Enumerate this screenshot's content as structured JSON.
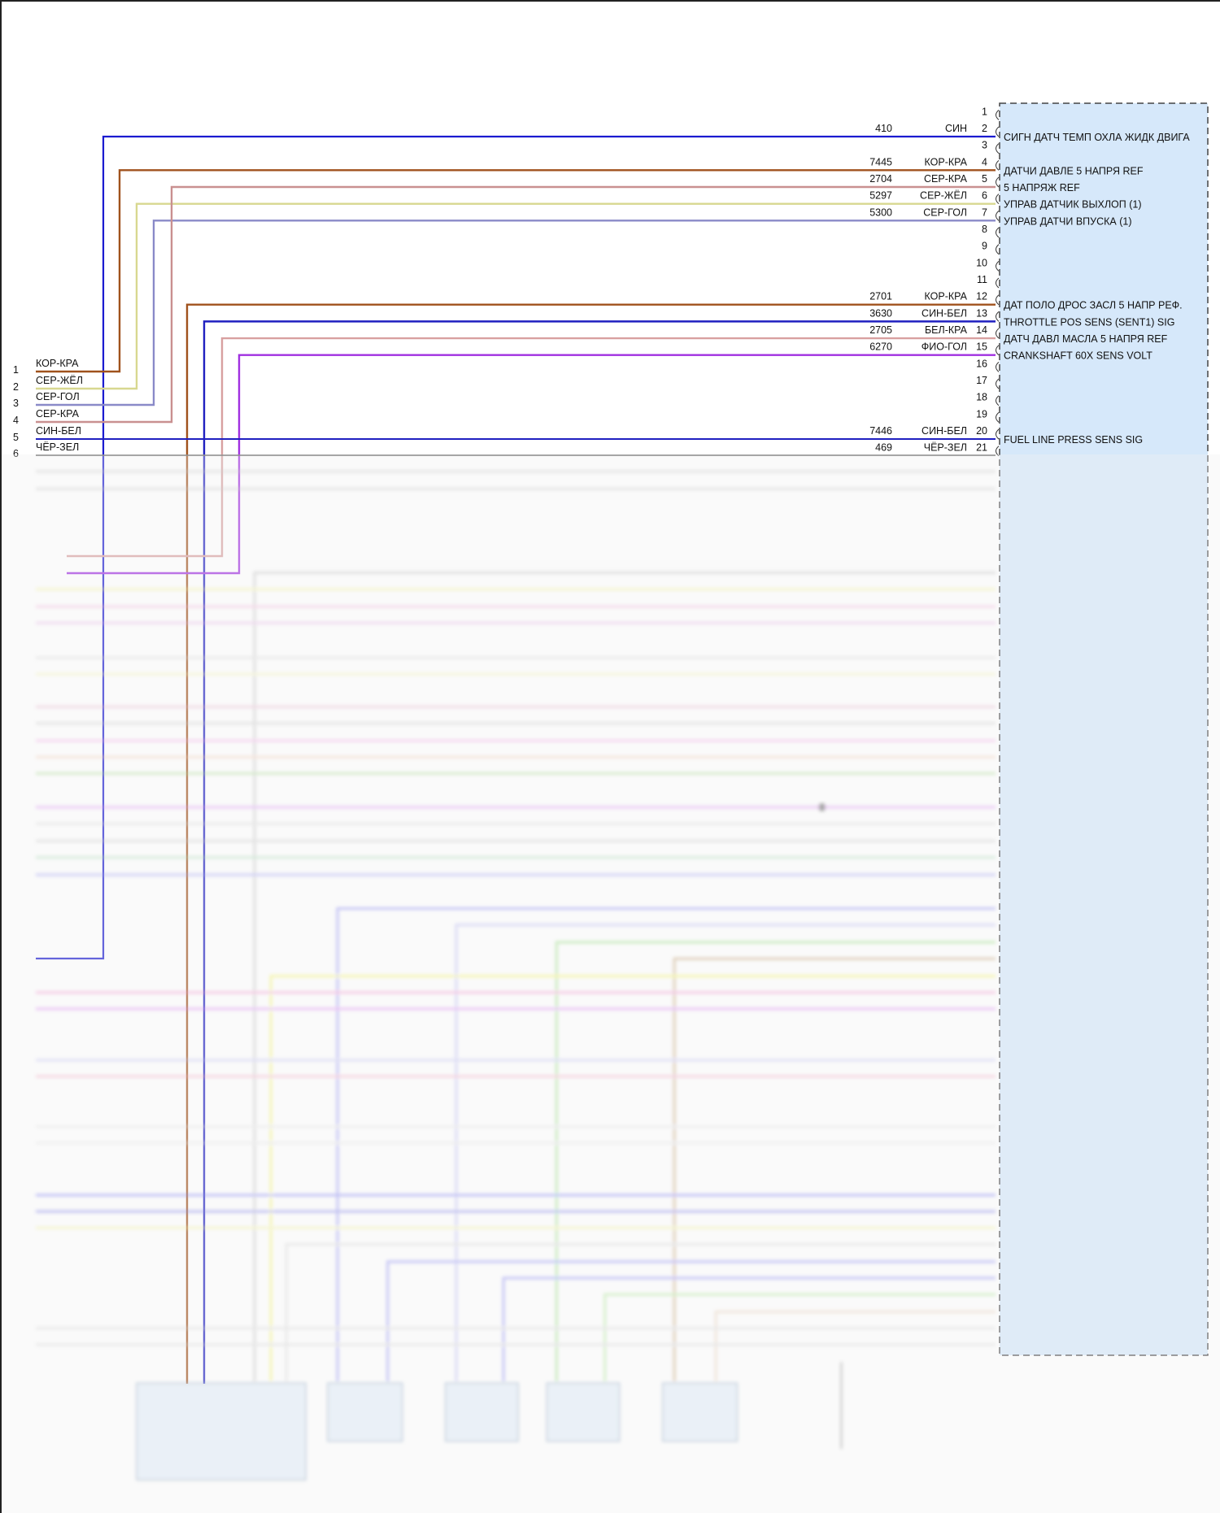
{
  "module": {
    "pins": [
      {
        "pin": "1"
      },
      {
        "pin": "2",
        "circuit": "410",
        "color_code": "СИН",
        "function": "СИГН ДАТЧ ТЕМП ОХЛА ЖИДК ДВИГА",
        "color": "#1a1ad0"
      },
      {
        "pin": "3"
      },
      {
        "pin": "4",
        "circuit": "7445",
        "color_code": "КОР-КРА",
        "function": "ДАТЧИ ДАВЛЕ 5 НАПРЯ REF",
        "color": "#a0521d"
      },
      {
        "pin": "5",
        "circuit": "2704",
        "color_code": "СЕР-КРА",
        "function": "5 НАПРЯЖ REF",
        "color": "#c99090"
      },
      {
        "pin": "6",
        "circuit": "5297",
        "color_code": "СЕР-ЖЁЛ",
        "function": "УПРАВ ДАТЧИК ВЫХЛОП (1)",
        "color": "#d8d890"
      },
      {
        "pin": "7",
        "circuit": "5300",
        "color_code": "СЕР-ГОЛ",
        "function": "УПРАВ ДАТЧИ ВПУСКА (1)",
        "color": "#8a8ac8"
      },
      {
        "pin": "8"
      },
      {
        "pin": "9"
      },
      {
        "pin": "10"
      },
      {
        "pin": "11"
      },
      {
        "pin": "12",
        "circuit": "2701",
        "color_code": "КОР-КРА",
        "function": "ДАТ ПОЛО ДРОС ЗАСЛ 5 НАПР РЕФ.",
        "color": "#a0521d"
      },
      {
        "pin": "13",
        "circuit": "3630",
        "color_code": "СИН-БЕЛ",
        "function": "THROTTLE POS SENS (SENT1) SIG",
        "color": "#2020c0"
      },
      {
        "pin": "14",
        "circuit": "2705",
        "color_code": "БЕЛ-КРА",
        "function": "ДАТЧ ДАВЛ МАСЛА 5 НАПРЯ REF",
        "color": "#d8a0a0"
      },
      {
        "pin": "15",
        "circuit": "6270",
        "color_code": "ФИО-ГОЛ",
        "function": "CRANKSHAFT 60X SENS VOLT",
        "color": "#a030e0"
      },
      {
        "pin": "16"
      },
      {
        "pin": "17"
      },
      {
        "pin": "18"
      },
      {
        "pin": "19"
      },
      {
        "pin": "20",
        "circuit": "7446",
        "color_code": "СИН-БЕЛ",
        "function": "FUEL LINE PRESS SENS SIG",
        "color": "#2020c0"
      },
      {
        "pin": "21",
        "circuit": "469",
        "color_code": "ЧЁР-ЗЕЛ",
        "function": "",
        "color": "#444"
      }
    ],
    "box_fill": "#d6e8fa"
  },
  "left_connector": [
    {
      "pin": "1",
      "color_code": "КОР-КРА"
    },
    {
      "pin": "2",
      "color_code": "СЕР-ЖЁЛ"
    },
    {
      "pin": "3",
      "color_code": "СЕР-ГОЛ"
    },
    {
      "pin": "4",
      "color_code": "СЕР-КРА"
    },
    {
      "pin": "5",
      "color_code": "СИН-БЕЛ"
    },
    {
      "pin": "6",
      "color_code": "ЧЁР-ЗЕЛ"
    }
  ]
}
